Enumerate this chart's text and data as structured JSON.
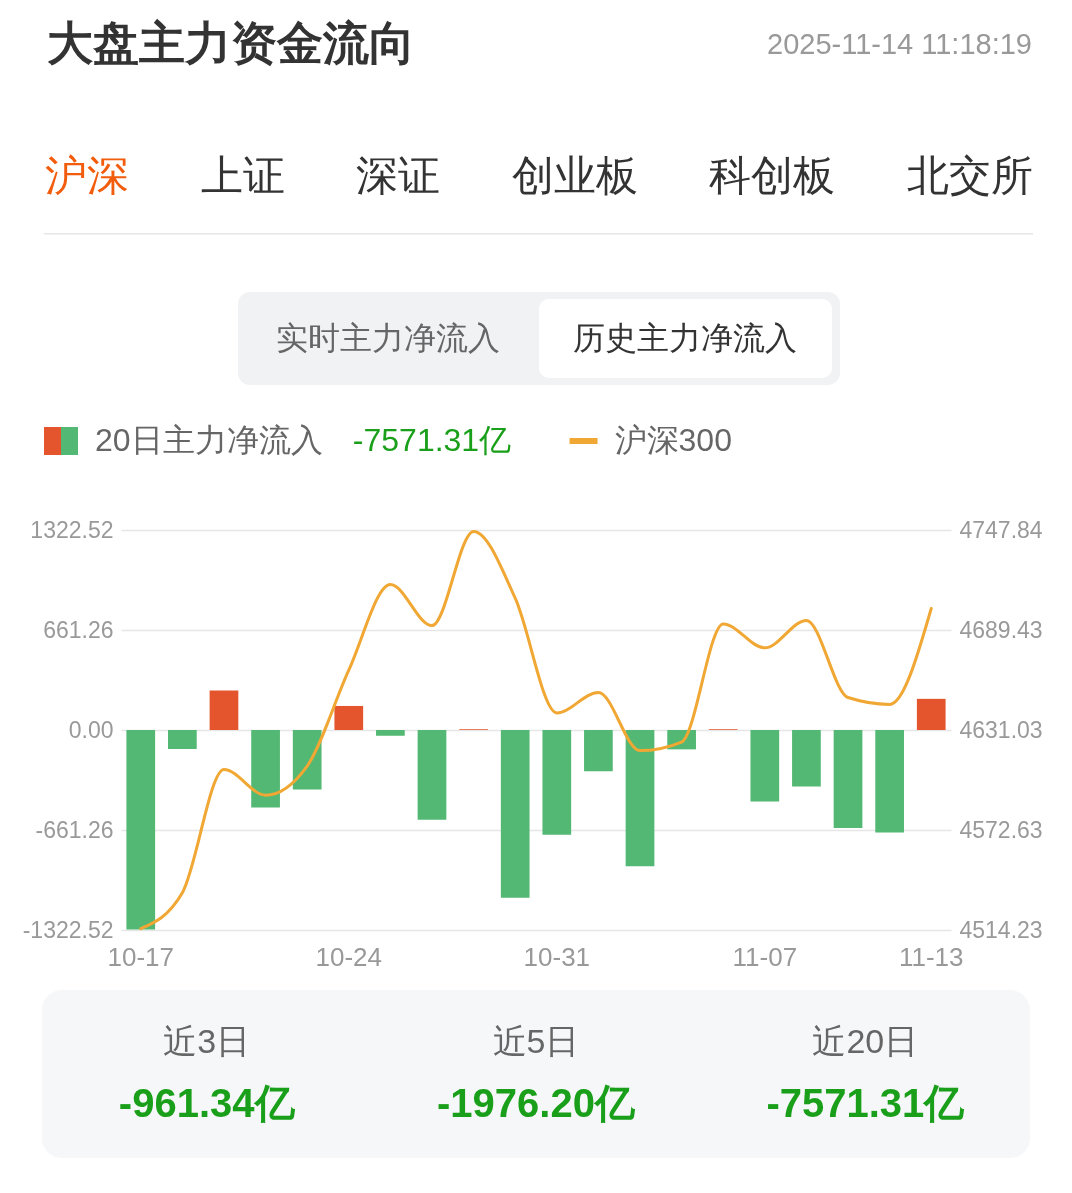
{
  "chart_data": {
    "type": "bar",
    "title": "大盘主力资金流向",
    "subtitle": "2025-11-14 11:18:19",
    "categories": [
      "10-17",
      null,
      null,
      null,
      null,
      "10-24",
      null,
      null,
      null,
      null,
      "10-31",
      null,
      null,
      null,
      null,
      "11-07",
      null,
      null,
      null,
      "11-13"
    ],
    "series": [
      {
        "name": "20日主力净流入",
        "values": [
          -1320,
          -125,
          262,
          -513,
          -394,
          159,
          -38,
          -594,
          5,
          -1110,
          -693,
          -273,
          -901,
          -128,
          5,
          -473,
          -374,
          -648,
          -677,
          206
        ],
        "colors": [
          "#52b873",
          "#52b873",
          "#e5552d",
          "#52b873",
          "#52b873",
          "#e5552d",
          "#52b873",
          "#52b873",
          "#e5552d",
          "#52b873",
          "#52b873",
          "#52b873",
          "#52b873",
          "#52b873",
          "#e5552d",
          "#52b873",
          "#52b873",
          "#52b873",
          "#52b873",
          "#e5552d"
        ]
      },
      {
        "name": "沪深300",
        "type": "line",
        "axis": "y2",
        "color": "#f0a733",
        "values": [
          4515,
          4536,
          4608,
          4593,
          4610,
          4666,
          4716,
          4692,
          4747,
          4708,
          4641,
          4653,
          4619,
          4624,
          4693,
          4679,
          4695,
          4650,
          4646,
          4702
        ]
      }
    ],
    "ylim": [
      -1322.52,
      1322.52
    ],
    "yticks": [
      1322.52,
      661.26,
      {
        "value": 0,
        "label": "0.00"
      },
      -661.26,
      -1322.52
    ],
    "y2lim": [
      4514.23,
      4747.84
    ],
    "y2ticks": [
      4747.84,
      4689.43,
      4631.03,
      4572.63,
      4514.23
    ],
    "grid": "y",
    "legend": "top left",
    "annotations": [
      "沪深",
      "上证",
      "深证",
      "创业板",
      "科创板",
      "北交所",
      "实时主力净流入",
      "历史主力净流入",
      "-7571.31亿",
      "近3日",
      "-961.34亿",
      "近5日",
      "-1976.20亿",
      "近20日",
      "-7571.31亿"
    ]
  }
}
